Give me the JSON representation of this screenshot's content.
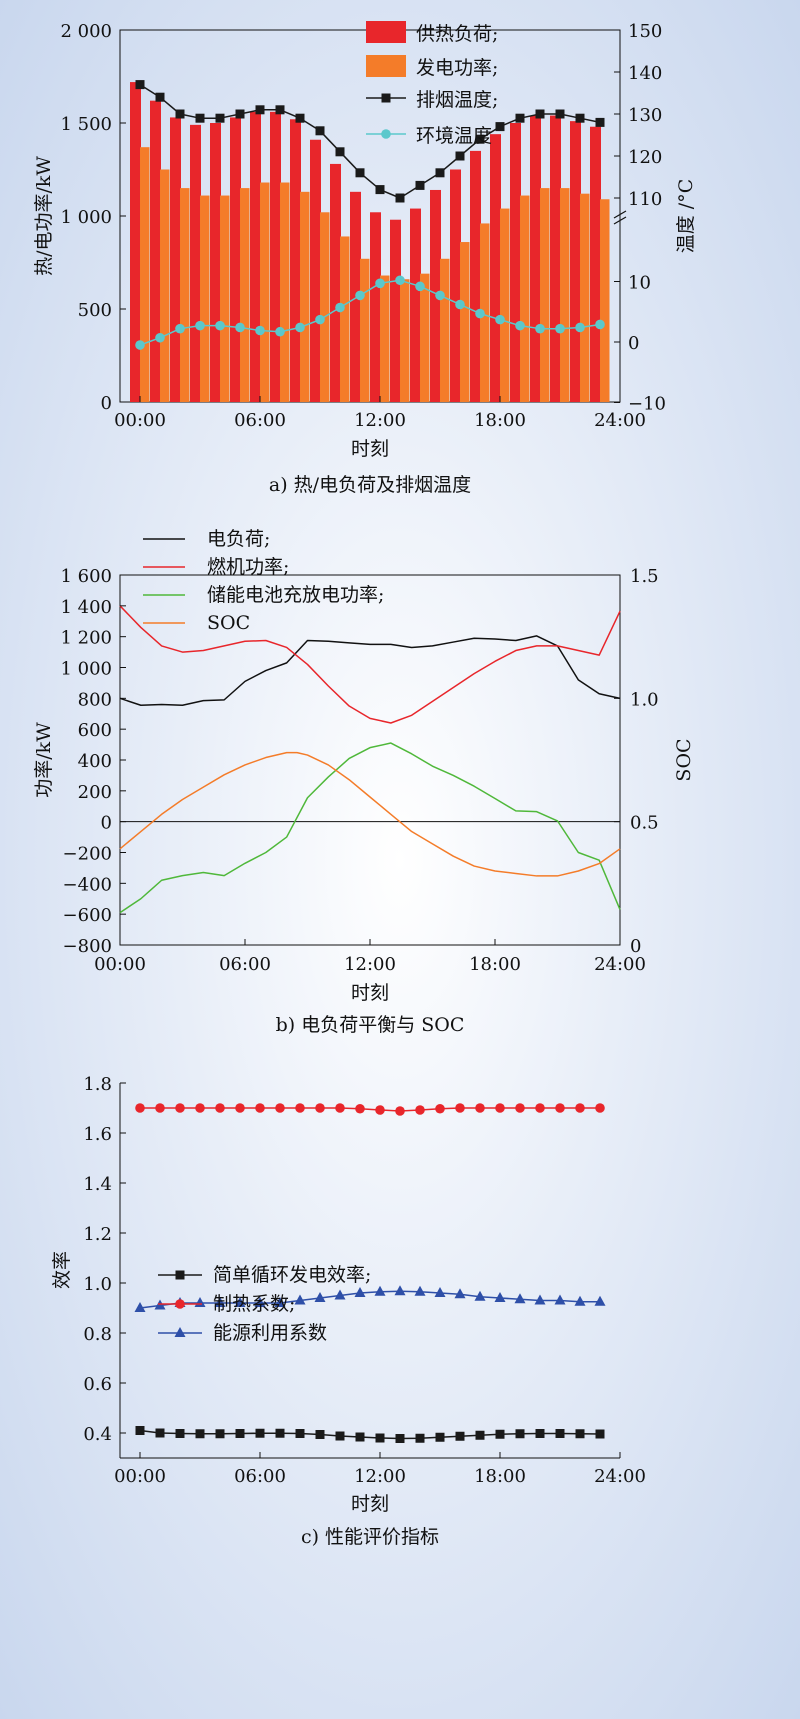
{
  "charts": [
    {
      "caption": "a) 热/电负荷及排烟温度",
      "chart_data": {
        "type": "bar",
        "x": [
          0,
          1,
          2,
          3,
          4,
          5,
          6,
          7,
          8,
          9,
          10,
          11,
          12,
          13,
          14,
          15,
          16,
          17,
          18,
          19,
          20,
          21,
          22,
          23
        ],
        "xticks": [
          "00:00",
          "06:00",
          "12:00",
          "18:00",
          "24:00"
        ],
        "xlabel": "时刻",
        "ylabel_left": "热/电功率/kW",
        "ylabel_right": "温度 /°C",
        "ylim_left": [
          0,
          2000
        ],
        "yticks_left": [
          "0",
          "500",
          "1 000",
          "1 500",
          "2 000"
        ],
        "right_axis_breaks": "upper 110–150, lower −10–10",
        "yticks_right_upper": [
          "110",
          "120",
          "130",
          "140",
          "150"
        ],
        "yticks_right_lower": [
          "−10",
          "0",
          "10"
        ],
        "legend_position": "top-right",
        "series": [
          {
            "name": "供热负荷;",
            "kind": "bar",
            "axis": "left",
            "color": "#e8262b",
            "values": [
              1720,
              1620,
              1530,
              1490,
              1500,
              1530,
              1560,
              1560,
              1520,
              1410,
              1280,
              1130,
              1020,
              980,
              1040,
              1140,
              1250,
              1350,
              1440,
              1500,
              1540,
              1540,
              1510,
              1480
            ]
          },
          {
            "name": "发电功率;",
            "kind": "bar",
            "axis": "left",
            "color": "#f47c29",
            "values": [
              1370,
              1250,
              1150,
              1110,
              1110,
              1150,
              1180,
              1180,
              1130,
              1020,
              890,
              770,
              680,
              660,
              690,
              770,
              860,
              960,
              1040,
              1110,
              1150,
              1150,
              1120,
              1090
            ]
          },
          {
            "name": "排烟温度;",
            "kind": "line",
            "axis": "right",
            "color": "#1a1a1a",
            "marker": "square",
            "x": [
              0,
              1,
              2,
              3,
              4,
              5,
              6,
              7,
              8,
              9,
              10,
              11,
              12,
              13,
              14,
              15,
              16,
              17,
              18,
              19,
              20,
              21,
              22,
              23
            ],
            "values": [
              137,
              134,
              130,
              129,
              129,
              130,
              131,
              131,
              129,
              126,
              121,
              116,
              112,
              110,
              113,
              116,
              120,
              124,
              127,
              129,
              130,
              130,
              129,
              128
            ]
          },
          {
            "name": "环境温度",
            "kind": "line",
            "axis": "right",
            "color": "#5bc8cc",
            "marker": "circle",
            "x": [
              0,
              1,
              2,
              3,
              4,
              5,
              6,
              7,
              8,
              9,
              10,
              11,
              12,
              13,
              14,
              15,
              16,
              17,
              18,
              19,
              20,
              21,
              22,
              23
            ],
            "values": [
              -0.5,
              0.7,
              2.2,
              2.7,
              2.7,
              2.4,
              1.9,
              1.7,
              2.4,
              3.7,
              5.7,
              7.7,
              9.7,
              10.2,
              9.2,
              7.7,
              6.2,
              4.7,
              3.7,
              2.7,
              2.2,
              2.2,
              2.4,
              2.9
            ]
          }
        ]
      }
    },
    {
      "caption": "b) 电负荷平衡与 SOC",
      "chart_data": {
        "type": "line",
        "xticks": [
          "00:00",
          "06:00",
          "12:00",
          "18:00",
          "24:00"
        ],
        "xlabel": "时刻",
        "ylabel_left": "功率/kW",
        "ylabel_right": "SOC",
        "ylim_left": [
          -800,
          1600
        ],
        "ylim_right": [
          0,
          1.5
        ],
        "yticks_left": [
          "−800",
          "−600",
          "−400",
          "−200",
          "0",
          "200",
          "400",
          "600",
          "800",
          "1 000",
          "1 200",
          "1 400",
          "1 600"
        ],
        "yticks_right": [
          "0",
          "0.5",
          "1.0",
          "1.5"
        ],
        "legend_position": "top-left",
        "series": [
          {
            "name": "电负荷;",
            "axis": "left",
            "color": "#111111",
            "x": [
              0,
              1,
              2,
              3,
              4,
              5,
              6,
              7,
              8,
              9,
              10,
              11,
              12,
              13,
              14,
              15,
              16,
              17,
              18,
              19,
              20,
              21,
              22,
              23,
              24
            ],
            "values": [
              800,
              755,
              760,
              755,
              785,
              790,
              910,
              980,
              1030,
              1175,
              1170,
              1160,
              1150,
              1150,
              1130,
              1140,
              1165,
              1190,
              1185,
              1175,
              1205,
              1140,
              920,
              830,
              800
            ]
          },
          {
            "name": "燃机功率;",
            "axis": "left",
            "color": "#e8262b",
            "x": [
              0,
              1,
              2,
              3,
              4,
              5,
              6,
              7,
              8,
              9,
              10,
              11,
              12,
              13,
              14,
              15,
              16,
              17,
              18,
              19,
              20,
              21,
              22,
              23,
              24
            ],
            "values": [
              1400,
              1260,
              1140,
              1100,
              1110,
              1140,
              1170,
              1175,
              1130,
              1020,
              880,
              750,
              670,
              640,
              690,
              780,
              870,
              960,
              1040,
              1110,
              1140,
              1140,
              1110,
              1080,
              1365
            ]
          },
          {
            "name": "储能电池充放电功率;",
            "axis": "left",
            "color": "#4fb83a",
            "x": [
              0,
              1,
              2,
              3,
              4,
              5,
              6,
              7,
              8,
              9,
              10,
              11,
              12,
              13,
              14,
              15,
              16,
              17,
              18,
              19,
              20,
              21,
              22,
              23,
              24
            ],
            "values": [
              -590,
              -500,
              -380,
              -350,
              -330,
              -350,
              -270,
              -200,
              -100,
              155,
              290,
              410,
              480,
              510,
              440,
              360,
              300,
              230,
              150,
              70,
              65,
              5,
              -200,
              -250,
              -570
            ]
          },
          {
            "name": "SOC",
            "axis": "right",
            "color": "#f47c29",
            "x": [
              0,
              1,
              2,
              3,
              4,
              5,
              6,
              7,
              8,
              8.5,
              9,
              10,
              11,
              12,
              13,
              14,
              15,
              16,
              17,
              18,
              19,
              20,
              21,
              22,
              23,
              24
            ],
            "values": [
              0.39,
              0.46,
              0.53,
              0.59,
              0.64,
              0.69,
              0.73,
              0.76,
              0.78,
              0.78,
              0.77,
              0.73,
              0.67,
              0.6,
              0.53,
              0.46,
              0.41,
              0.36,
              0.32,
              0.3,
              0.29,
              0.28,
              0.28,
              0.3,
              0.33,
              0.39
            ]
          }
        ]
      }
    },
    {
      "caption": "c) 性能评价指标",
      "chart_data": {
        "type": "line",
        "xticks": [
          "00:00",
          "06:00",
          "12:00",
          "18:00",
          "24:00"
        ],
        "xlabel": "时刻",
        "ylabel": "效率",
        "ylim": [
          0.3,
          1.8
        ],
        "yticks": [
          "0.4",
          "0.6",
          "0.8",
          "1.0",
          "1.2",
          "1.4",
          "1.6",
          "1.8"
        ],
        "legend_position": "center-left",
        "series": [
          {
            "name": "简单循环发电效率;",
            "color": "#1a1a1a",
            "marker": "square",
            "x": [
              0,
              1,
              2,
              3,
              4,
              5,
              6,
              7,
              8,
              9,
              10,
              11,
              12,
              13,
              14,
              15,
              16,
              17,
              18,
              19,
              20,
              21,
              22,
              23
            ],
            "values": [
              0.41,
              0.4,
              0.398,
              0.397,
              0.397,
              0.398,
              0.399,
              0.399,
              0.398,
              0.394,
              0.388,
              0.384,
              0.38,
              0.378,
              0.379,
              0.383,
              0.387,
              0.391,
              0.395,
              0.397,
              0.398,
              0.398,
              0.397,
              0.396
            ]
          },
          {
            "name": "制热系数;",
            "color": "#e8262b",
            "marker": "circle",
            "x": [
              0,
              1,
              2,
              3,
              4,
              5,
              6,
              7,
              8,
              9,
              10,
              11,
              12,
              13,
              14,
              15,
              16,
              17,
              18,
              19,
              20,
              21,
              22,
              23
            ],
            "values": [
              1.7,
              1.7,
              1.7,
              1.7,
              1.7,
              1.7,
              1.7,
              1.7,
              1.7,
              1.7,
              1.7,
              1.697,
              1.692,
              1.688,
              1.692,
              1.697,
              1.7,
              1.7,
              1.7,
              1.7,
              1.7,
              1.7,
              1.7,
              1.7
            ]
          },
          {
            "name": "能源利用系数",
            "color": "#2e4fa8",
            "marker": "triangle",
            "x": [
              0,
              1,
              2,
              3,
              4,
              5,
              6,
              7,
              8,
              9,
              10,
              11,
              12,
              13,
              14,
              15,
              16,
              17,
              18,
              19,
              20,
              21,
              22,
              23
            ],
            "values": [
              0.9,
              0.91,
              0.92,
              0.92,
              0.92,
              0.92,
              0.92,
              0.92,
              0.93,
              0.94,
              0.95,
              0.96,
              0.965,
              0.967,
              0.965,
              0.96,
              0.955,
              0.945,
              0.94,
              0.935,
              0.93,
              0.93,
              0.925,
              0.925
            ]
          }
        ]
      }
    }
  ]
}
